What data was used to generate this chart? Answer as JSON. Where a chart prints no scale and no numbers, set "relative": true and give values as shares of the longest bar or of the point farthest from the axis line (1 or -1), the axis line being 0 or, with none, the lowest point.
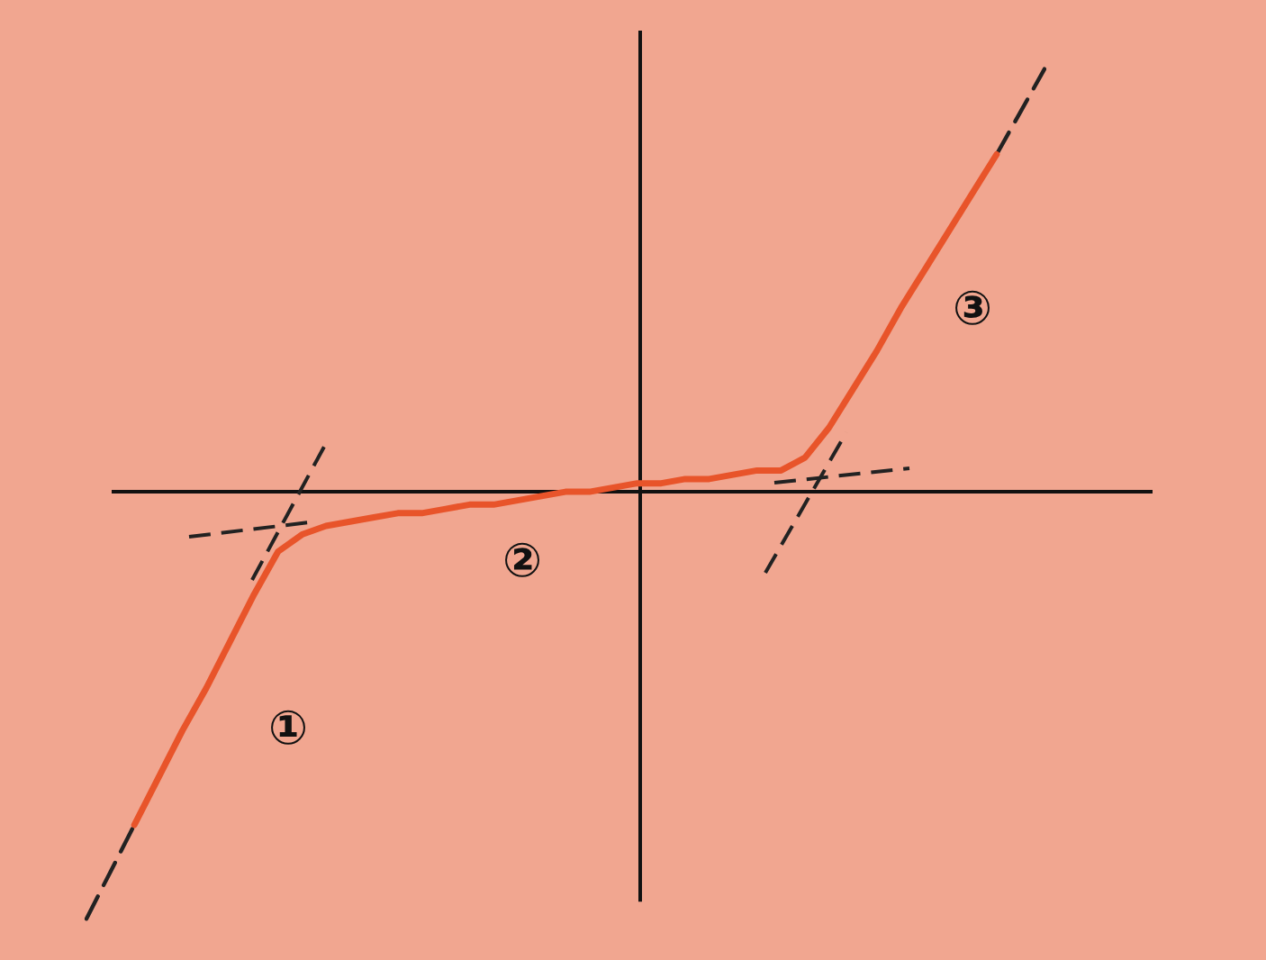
{
  "chart_data": {
    "type": "line",
    "relative": true,
    "legend": false,
    "marker": "none",
    "categories": [
      null,
      null,
      null,
      null,
      null,
      null,
      null,
      null,
      null,
      null,
      null,
      null,
      null,
      null,
      null,
      null,
      null,
      null,
      null,
      null,
      null,
      null,
      null,
      null,
      null,
      null,
      null,
      null,
      null,
      null,
      null,
      null,
      null,
      null,
      null,
      null,
      null,
      null,
      null,
      null,
      null
    ],
    "annotations": [
      "①",
      "②",
      "③"
    ],
    "series": [
      {
        "color": "#e8542a",
        "line_style": "solid",
        "values": [
          null,
          null,
          -0.78,
          -0.67,
          -0.56,
          -0.46,
          -0.35,
          -0.24,
          -0.14,
          -0.1,
          -0.08,
          -0.07,
          -0.06,
          -0.05,
          -0.05,
          -0.04,
          -0.03,
          -0.03,
          -0.02,
          -0.01,
          0,
          0,
          0.01,
          0.02,
          0.02,
          0.03,
          0.03,
          0.04,
          0.05,
          0.05,
          0.08,
          0.15,
          0.24,
          0.33,
          0.43,
          0.52,
          0.61,
          0.7,
          0.79,
          null,
          null
        ]
      },
      {
        "color": "#222222",
        "line_style": "dashed",
        "values": [
          -1,
          -0.89,
          -0.78,
          null,
          null,
          null,
          null,
          null,
          null,
          null,
          null,
          null,
          null,
          null,
          null,
          null,
          null,
          null,
          null,
          null,
          null,
          null,
          null,
          null,
          null,
          null,
          null,
          null,
          null,
          null,
          null,
          null,
          null,
          null,
          null,
          null,
          null,
          null,
          null,
          null,
          null
        ]
      },
      {
        "color": "#222222",
        "line_style": "dashed",
        "values": [
          null,
          null,
          null,
          null,
          null,
          null,
          null,
          null,
          null,
          null,
          null,
          null,
          null,
          null,
          null,
          null,
          null,
          null,
          null,
          null,
          null,
          null,
          null,
          null,
          null,
          null,
          null,
          null,
          null,
          null,
          null,
          null,
          null,
          null,
          null,
          null,
          null,
          null,
          0.79,
          0.89,
          0.99
        ]
      }
    ]
  }
}
